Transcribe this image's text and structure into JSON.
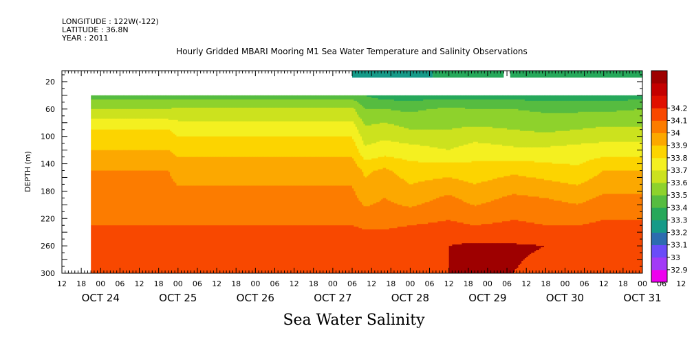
{
  "header": {
    "longitude": "LONGITUDE : 122W(-122)",
    "latitude": "LATITUDE : 36.8N",
    "year": "YEAR : 2011"
  },
  "title": "Hourly Gridded MBARI Mooring M1 Sea Water Temperature and Salinity Observations",
  "bottom_title": "Sea Water Salinity",
  "chart_data": {
    "type": "heatmap",
    "title": "Hourly Gridded MBARI Mooring M1 Sea Water Temperature and Salinity Observations",
    "xlabel": "",
    "ylabel": "DEPTH (m)",
    "x_hour_ticks": [
      "12",
      "18",
      "00",
      "06",
      "12",
      "18",
      "00",
      "06",
      "12",
      "18",
      "00",
      "06",
      "12",
      "18",
      "00",
      "06",
      "12",
      "18",
      "00",
      "06",
      "12",
      "18",
      "00",
      "06",
      "12",
      "18",
      "00",
      "06",
      "12",
      "18",
      "00",
      "06",
      "12"
    ],
    "x_day_labels": [
      "OCT 24",
      "OCT 25",
      "OCT 26",
      "OCT 27",
      "OCT 28",
      "OCT 29",
      "OCT 30",
      "OCT 31"
    ],
    "y_ticks": [
      20,
      60,
      100,
      140,
      180,
      220,
      260,
      300
    ],
    "ylim": [
      300,
      4
    ],
    "xlim_hours": [
      0,
      180
    ],
    "colorbar": {
      "levels": [
        32.9,
        33.0,
        33.1,
        33.2,
        33.3,
        33.4,
        33.5,
        33.6,
        33.7,
        33.8,
        33.9,
        34.0,
        34.1,
        34.2
      ],
      "labels": [
        "32.9",
        "33",
        "33.1",
        "33.2",
        "33.3",
        "33.4",
        "33.5",
        "33.6",
        "33.7",
        "33.8",
        "33.9",
        "34",
        "34.1",
        "34.2"
      ],
      "colors": [
        "#ee00ee",
        "#a23af6",
        "#6a4cf8",
        "#2c6cb0",
        "#159a88",
        "#26a85a",
        "#56bc40",
        "#8ed22c",
        "#cce21e",
        "#f4f020",
        "#fcd400",
        "#fca800",
        "#fc7c00",
        "#f84800",
        "#e01000",
        "#c40000",
        "#9e0000"
      ]
    },
    "profiles": [
      {
        "x": 9,
        "values": [
          33.45,
          33.6,
          33.8,
          33.9,
          34.0,
          34.05,
          34.1,
          34.2,
          34.15
        ]
      },
      {
        "x": 33,
        "values": [
          33.45,
          33.6,
          33.8,
          33.9,
          34.0,
          34.05,
          34.1,
          34.2,
          34.15
        ]
      },
      {
        "x": 36,
        "values": [
          33.45,
          33.62,
          33.76,
          33.87,
          33.96,
          34.03,
          34.1,
          34.2,
          34.15
        ]
      },
      {
        "x": 90,
        "values": [
          33.45,
          33.62,
          33.76,
          33.87,
          33.96,
          34.03,
          34.1,
          34.2,
          34.15
        ]
      },
      {
        "x": 94,
        "values": [
          33.4,
          33.5,
          33.62,
          33.72,
          33.88,
          33.96,
          34.08,
          34.17,
          34.14
        ]
      },
      {
        "x": 100,
        "values": [
          33.35,
          33.5,
          33.65,
          33.75,
          33.92,
          34.0,
          34.08,
          34.18,
          34.13
        ]
      },
      {
        "x": 108,
        "values": [
          33.35,
          33.48,
          33.6,
          33.74,
          33.85,
          33.95,
          34.1,
          34.19,
          34.15
        ]
      },
      {
        "x": 120,
        "values": [
          33.35,
          33.52,
          33.6,
          33.7,
          33.86,
          34.02,
          34.12,
          34.2,
          34.2
        ]
      },
      {
        "x": 128,
        "values": [
          33.35,
          33.5,
          33.62,
          33.75,
          33.84,
          33.96,
          34.1,
          34.22,
          34.22
        ]
      },
      {
        "x": 140,
        "values": [
          33.35,
          33.5,
          33.6,
          33.72,
          33.88,
          34.02,
          34.12,
          34.21,
          34.2
        ]
      },
      {
        "x": 150,
        "values": [
          33.35,
          33.48,
          33.58,
          33.72,
          33.85,
          34.0,
          34.1,
          34.2,
          34.18
        ]
      },
      {
        "x": 160,
        "values": [
          33.35,
          33.48,
          33.6,
          33.74,
          33.82,
          33.97,
          34.1,
          34.2,
          34.18
        ]
      },
      {
        "x": 168,
        "values": [
          33.35,
          33.48,
          33.62,
          33.75,
          33.9,
          34.02,
          34.12,
          34.2,
          34.17
        ]
      },
      {
        "x": 180,
        "values": [
          33.35,
          33.5,
          33.62,
          33.75,
          33.9,
          34.02,
          34.12,
          34.2,
          34.17
        ]
      }
    ],
    "profile_depths": [
      40,
      60,
      90,
      120,
      150,
      190,
      230,
      260,
      300
    ],
    "surface_bar": [
      {
        "x0": 90,
        "x1": 115,
        "value": 33.2
      },
      {
        "x0": 115,
        "x1": 137,
        "value": 33.3
      },
      {
        "x0": 139,
        "x1": 183,
        "value": 33.3
      }
    ]
  }
}
